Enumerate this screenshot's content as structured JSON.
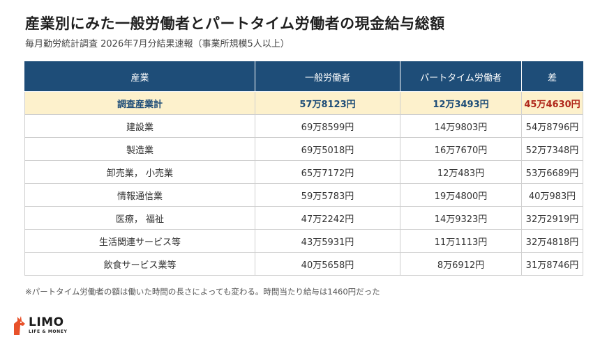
{
  "title": "産業別にみた一般労働者とパートタイム労働者の現金給与総額",
  "subtitle": "毎月勤労統計調査 2026年7月分結果速報（事業所規模5人以上）",
  "table": {
    "headers": [
      "産業",
      "一般労働者",
      "パートタイム労働者",
      "差"
    ],
    "rows": [
      [
        "調査産業計",
        "57万8123円",
        "12万3493円",
        "45万4630円"
      ],
      [
        "建設業",
        "69万8599円",
        "14万9803円",
        "54万8796円"
      ],
      [
        "製造業",
        "69万5018円",
        "16万7670円",
        "52万7348円"
      ],
      [
        "卸売業， 小売業",
        "65万7172円",
        "12万483円",
        "53万6689円"
      ],
      [
        "情報通信業",
        "59万5783円",
        "19万4800円",
        "40万983円"
      ],
      [
        "医療， 福祉",
        "47万2242円",
        "14万9323円",
        "32万2919円"
      ],
      [
        "生活関連サービス等",
        "43万5931円",
        "11万1113円",
        "32万4818円"
      ],
      [
        "飲食サービス業等",
        "40万5658円",
        "8万6912円",
        "31万8746円"
      ]
    ]
  },
  "note": "※パートタイム労働者の額は働いた時間の長さによっても変わる。時間当たり給与は1460円だった",
  "logo": {
    "name": "LIMO",
    "tagline": "LIFE & MONEY",
    "color": "#e8512a"
  },
  "colors": {
    "header_bg": "#1e4d78",
    "total_bg": "#fdf1cc",
    "total_text": "#1e4d78",
    "total_diff": "#b0271b"
  }
}
